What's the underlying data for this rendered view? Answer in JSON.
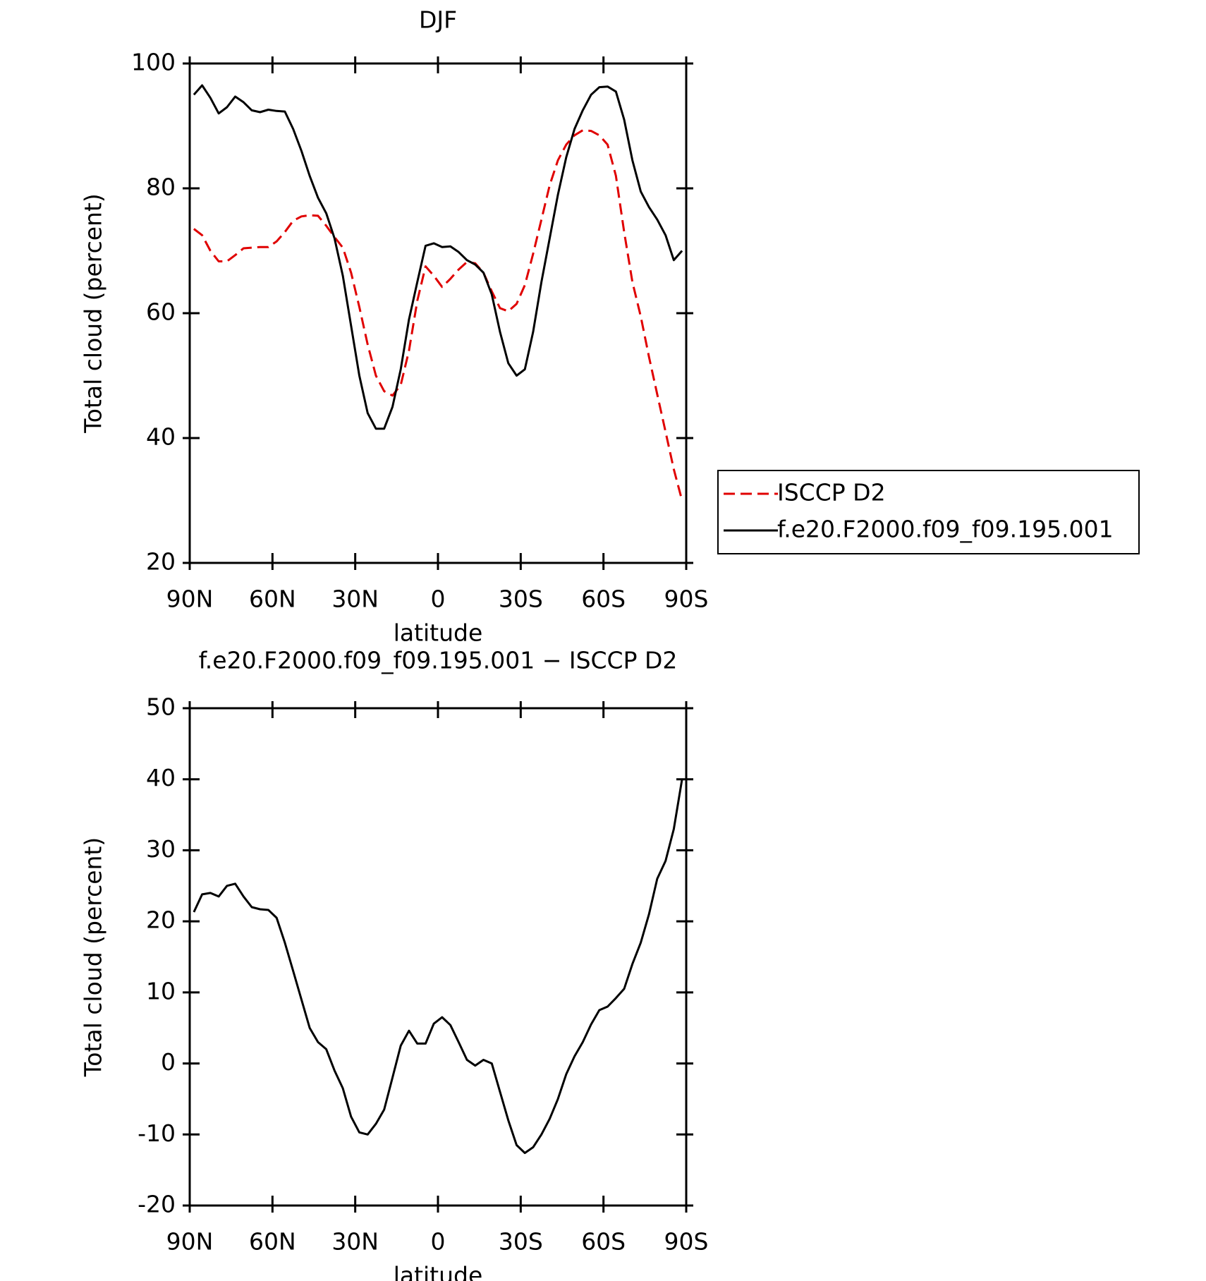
{
  "chart_data": [
    {
      "type": "line",
      "title": "DJF",
      "x_label": "latitude",
      "y_label": "Total cloud (percent)",
      "x": [
        88.5,
        85.5,
        82.5,
        79.5,
        76.5,
        73.5,
        70.5,
        67.5,
        64.5,
        61.5,
        58.5,
        55.5,
        52.5,
        49.5,
        46.5,
        43.5,
        40.5,
        37.5,
        34.5,
        31.5,
        28.5,
        25.5,
        22.5,
        19.5,
        16.5,
        13.5,
        10.5,
        7.5,
        4.5,
        1.5,
        -1.5,
        -4.5,
        -7.5,
        -10.5,
        -13.5,
        -16.5,
        -19.5,
        -22.5,
        -25.5,
        -28.5,
        -31.5,
        -34.5,
        -37.5,
        -40.5,
        -43.5,
        -46.5,
        -49.5,
        -52.5,
        -55.5,
        -58.5,
        -61.5,
        -64.5,
        -67.5,
        -70.5,
        -73.5,
        -76.5,
        -79.5,
        -82.5,
        -85.5,
        -88.5
      ],
      "series": [
        {
          "name": "ISCCP D2",
          "color": "#e00000",
          "dash": true,
          "values": [
            73.5,
            72.5,
            70,
            68.3,
            68.3,
            69.3,
            70.4,
            70.5,
            70.6,
            70.6,
            71.5,
            73,
            74.8,
            75.5,
            75.7,
            75.6,
            74,
            72.2,
            70.5,
            66.5,
            61,
            55,
            50,
            47.5,
            46.8,
            48.5,
            54,
            62,
            67.5,
            66,
            64.2,
            65.5,
            67,
            68.2,
            68,
            66.5,
            63.5,
            60.8,
            60.3,
            61.5,
            64.5,
            69.5,
            75,
            80.5,
            84.5,
            87,
            88.5,
            89.3,
            89.2,
            88.5,
            87,
            82,
            73,
            65,
            59.5,
            53,
            47,
            41,
            35,
            30
          ]
        },
        {
          "name": "f.e20.F2000.f09_f09.195.001",
          "color": "#000000",
          "dash": false,
          "values": [
            95,
            96.5,
            94.5,
            92,
            93,
            94.7,
            93.8,
            92.5,
            92.2,
            92.6,
            92.4,
            92.3,
            89.5,
            86,
            82,
            78.5,
            76,
            72,
            66,
            58,
            50,
            44,
            41.5,
            41.5,
            45,
            51,
            59,
            65,
            70.8,
            71.2,
            70.6,
            70.7,
            69.8,
            68.5,
            67.8,
            66.5,
            63,
            57,
            52,
            50,
            51,
            57,
            65,
            72,
            79,
            85,
            89.5,
            92.5,
            95,
            96.2,
            96.3,
            95.5,
            91,
            84.5,
            79.5,
            77,
            75,
            72.5,
            68.5,
            70
          ]
        }
      ],
      "xlim": [
        90,
        -90
      ],
      "xticks": [
        {
          "value": 90,
          "label": "90N"
        },
        {
          "value": 60,
          "label": "60N"
        },
        {
          "value": 30,
          "label": "30N"
        },
        0,
        {
          "value": -30,
          "label": "30S"
        },
        {
          "value": -60,
          "label": "60S"
        },
        {
          "value": -90,
          "label": "90S"
        }
      ],
      "ylim": [
        20,
        100
      ],
      "yticks": [
        20,
        40,
        60,
        80,
        100
      ],
      "legend": "right"
    },
    {
      "type": "line",
      "title": "f.e20.F2000.f09_f09.195.001 − ISCCP D2",
      "x_label": "latitude",
      "y_label": "Total cloud (percent)",
      "x": [
        88.5,
        85.5,
        82.5,
        79.5,
        76.5,
        73.5,
        70.5,
        67.5,
        64.5,
        61.5,
        58.5,
        55.5,
        52.5,
        49.5,
        46.5,
        43.5,
        40.5,
        37.5,
        34.5,
        31.5,
        28.5,
        25.5,
        22.5,
        19.5,
        16.5,
        13.5,
        10.5,
        7.5,
        4.5,
        1.5,
        -1.5,
        -4.5,
        -7.5,
        -10.5,
        -13.5,
        -16.5,
        -19.5,
        -22.5,
        -25.5,
        -28.5,
        -31.5,
        -34.5,
        -37.5,
        -40.5,
        -43.5,
        -46.5,
        -49.5,
        -52.5,
        -55.5,
        -58.5,
        -61.5,
        -64.5,
        -67.5,
        -70.5,
        -73.5,
        -76.5,
        -79.5,
        -82.5,
        -85.5,
        -88.5
      ],
      "series": [
        {
          "color": "#000000",
          "dash": false,
          "values": [
            21.3,
            23.8,
            24,
            23.5,
            25,
            25.3,
            23.5,
            22,
            21.7,
            21.6,
            20.5,
            17,
            13,
            9,
            5,
            3,
            2,
            -1,
            -3.5,
            -7.5,
            -9.7,
            -10,
            -8.5,
            -6.5,
            -2,
            2.5,
            4.6,
            2.8,
            2.8,
            5.6,
            6.5,
            5.4,
            3,
            0.5,
            -0.3,
            0.5,
            0,
            -4,
            -8,
            -11.5,
            -12.6,
            -11.8,
            -10,
            -7.8,
            -5,
            -1.5,
            1,
            3,
            5.5,
            7.5,
            8,
            9.2,
            10.5,
            14,
            17,
            21,
            26,
            28.5,
            33,
            40
          ]
        }
      ],
      "xlim": [
        90,
        -90
      ],
      "xticks": [
        {
          "value": 90,
          "label": "90N"
        },
        {
          "value": 60,
          "label": "60N"
        },
        {
          "value": 30,
          "label": "30N"
        },
        0,
        {
          "value": -30,
          "label": "30S"
        },
        {
          "value": -60,
          "label": "60S"
        },
        {
          "value": -90,
          "label": "90S"
        }
      ],
      "ylim": [
        -20,
        50
      ],
      "yticks": [
        -20,
        -10,
        0,
        10,
        20,
        30,
        40,
        50
      ]
    }
  ]
}
